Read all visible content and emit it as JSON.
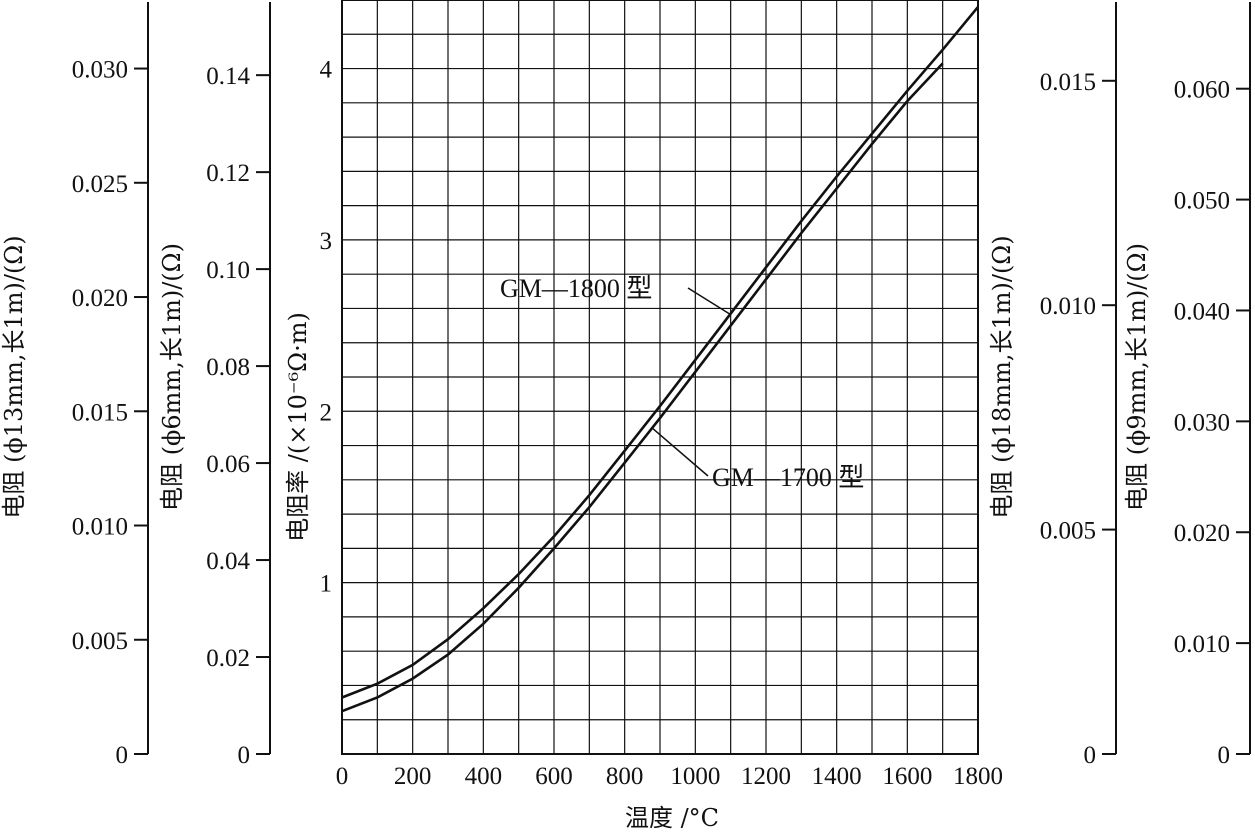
{
  "chart_data": {
    "type": "line",
    "xlabel": "温度 /°C",
    "xlim": [
      0,
      1800
    ],
    "x_ticks": [
      "0",
      "200",
      "400",
      "600",
      "800",
      "1000",
      "1200",
      "1400",
      "1600",
      "1800"
    ],
    "ylabel": "电阻率 /(×10⁻⁶Ω·m)",
    "ylim": [
      0,
      4.4
    ],
    "y_ticks": [
      "1",
      "2",
      "3",
      "4"
    ],
    "grid": true,
    "secondary_axes": [
      {
        "label": "电阻 (ϕ13mm,长1m)/(Ω)",
        "side": "left",
        "order": 1,
        "range": [
          0,
          0.033
        ],
        "ticks": [
          {
            "v": 0,
            "t": "0"
          },
          {
            "v": 0.005,
            "t": "0.005"
          },
          {
            "v": 0.01,
            "t": "0.010"
          },
          {
            "v": 0.015,
            "t": "0.015"
          },
          {
            "v": 0.02,
            "t": "0.020"
          },
          {
            "v": 0.025,
            "t": "0.025"
          },
          {
            "v": 0.03,
            "t": "0.030"
          }
        ]
      },
      {
        "label": "电阻 (ϕ6mm,长1m)/(Ω)",
        "side": "left",
        "order": 2,
        "range": [
          0,
          0.1555
        ],
        "ticks": [
          {
            "v": 0,
            "t": "0"
          },
          {
            "v": 0.02,
            "t": "0.02"
          },
          {
            "v": 0.04,
            "t": "0.04"
          },
          {
            "v": 0.06,
            "t": "0.06"
          },
          {
            "v": 0.08,
            "t": "0.08"
          },
          {
            "v": 0.1,
            "t": "0.10"
          },
          {
            "v": 0.12,
            "t": "0.12"
          },
          {
            "v": 0.14,
            "t": "0.14"
          }
        ]
      },
      {
        "label": "电阻 (ϕ18mm,长1m)/(Ω)",
        "side": "right",
        "order": 1,
        "range": [
          0,
          0.0168
        ],
        "ticks": [
          {
            "v": 0,
            "t": "0"
          },
          {
            "v": 0.005,
            "t": "0.005"
          },
          {
            "v": 0.01,
            "t": "0.010"
          },
          {
            "v": 0.015,
            "t": "0.015"
          }
        ]
      },
      {
        "label": "电阻 (ϕ9mm,长1m)/(Ω)",
        "side": "right",
        "order": 2,
        "range": [
          0,
          0.068
        ],
        "ticks": [
          {
            "v": 0,
            "t": "0"
          },
          {
            "v": 0.01,
            "t": "0.010"
          },
          {
            "v": 0.02,
            "t": "0.020"
          },
          {
            "v": 0.03,
            "t": "0.030"
          },
          {
            "v": 0.04,
            "t": "0.040"
          },
          {
            "v": 0.05,
            "t": "0.050"
          },
          {
            "v": 0.06,
            "t": "0.060"
          }
        ]
      }
    ],
    "series": [
      {
        "name": "GM—1800 型",
        "x": [
          0,
          100,
          200,
          300,
          400,
          500,
          600,
          700,
          800,
          900,
          1000,
          1100,
          1200,
          1300,
          1400,
          1500,
          1600,
          1700,
          1800
        ],
        "values": [
          0.33,
          0.41,
          0.52,
          0.67,
          0.85,
          1.05,
          1.27,
          1.51,
          1.77,
          2.03,
          2.3,
          2.57,
          2.84,
          3.11,
          3.37,
          3.62,
          3.87,
          4.11,
          4.36
        ]
      },
      {
        "name": "GM—1700 型",
        "x": [
          0,
          100,
          200,
          300,
          400,
          500,
          600,
          700,
          800,
          900,
          1000,
          1100,
          1200,
          1300,
          1400,
          1500,
          1600,
          1700
        ],
        "values": [
          0.25,
          0.33,
          0.44,
          0.58,
          0.76,
          0.97,
          1.2,
          1.44,
          1.7,
          1.96,
          2.23,
          2.5,
          2.77,
          3.04,
          3.3,
          3.56,
          3.81,
          4.03
        ]
      }
    ]
  }
}
